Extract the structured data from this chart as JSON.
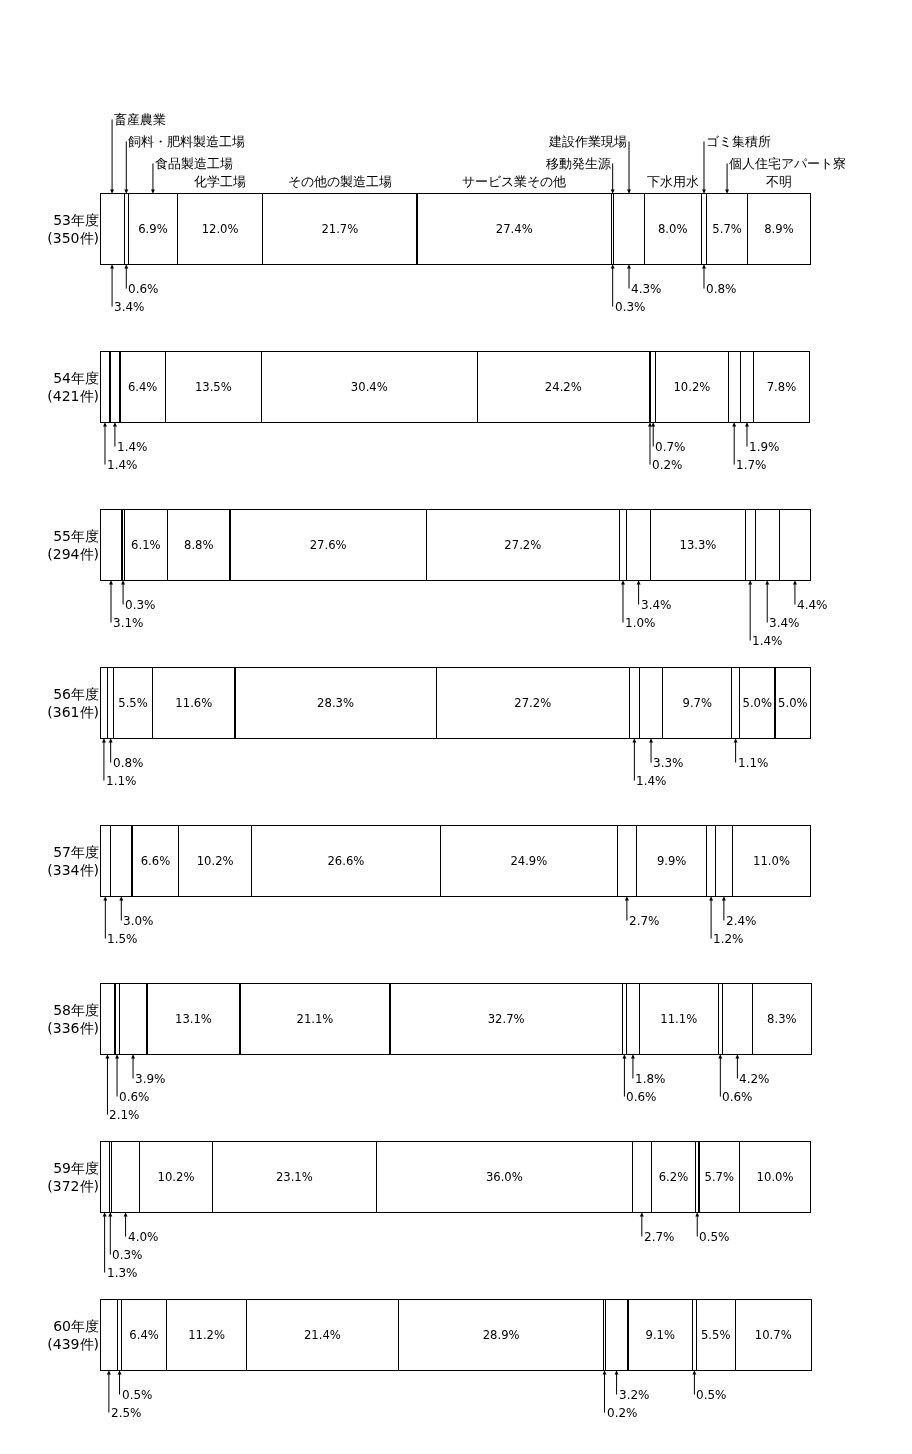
{
  "chart_data": {
    "type": "bar",
    "orientation": "horizontal",
    "stacked": true,
    "categories": [
      "53年度\n(350件)",
      "54年度\n(421件)",
      "55年度\n(294件)",
      "56年度\n(361件)",
      "57年度\n(334件)",
      "58年度\n(336件)",
      "59年度\n(372件)",
      "60年度\n(439件)"
    ],
    "series": [
      {
        "name": "畜産農業",
        "color": "#ffffff",
        "values": [
          3.4,
          1.4,
          3.1,
          1.1,
          1.5,
          2.1,
          1.3,
          2.5
        ],
        "value_labels": [
          "3.4%",
          "1.4%",
          "3.1%",
          "1.1%",
          "1.5%",
          "2.1%",
          "1.3%",
          "2.5%"
        ]
      },
      {
        "name": "飼料・肥料製造工場",
        "color": "#ffffff",
        "values": [
          0.6,
          1.4,
          0.3,
          0.8,
          3.0,
          0.6,
          0.3,
          0.5
        ],
        "value_labels": [
          "0.6%",
          "1.4%",
          "0.3%",
          "0.8%",
          "3.0%",
          "0.6%",
          "0.3%",
          "0.5%"
        ]
      },
      {
        "name": "食品製造工場",
        "color": "#ffffff",
        "values": [
          6.9,
          6.4,
          6.1,
          5.5,
          6.6,
          3.9,
          4.0,
          6.4
        ],
        "value_labels": [
          "6.9%",
          "6.4%",
          "6.1%",
          "5.5%",
          "6.6%",
          "3.9%",
          "4.0%",
          "6.4%"
        ]
      },
      {
        "name": "化学工場",
        "color": "#ffffff",
        "values": [
          12.0,
          13.5,
          8.8,
          11.6,
          10.2,
          13.1,
          10.2,
          11.2
        ],
        "value_labels": [
          "12.0%",
          "13.5%",
          "8.8%",
          "11.6%",
          "10.2%",
          "13.1%",
          "10.2%",
          "11.2%"
        ]
      },
      {
        "name": "その他の製造工場",
        "color": "#ffffff",
        "values": [
          21.7,
          30.4,
          27.6,
          28.3,
          26.6,
          21.1,
          23.1,
          21.4
        ],
        "value_labels": [
          "21.7%",
          "30.4%",
          "27.6%",
          "28.3%",
          "26.6%",
          "21.1%",
          "23.1%",
          "21.4%"
        ]
      },
      {
        "name": "サービス業その他",
        "color": "#ffffff",
        "values": [
          27.4,
          24.2,
          27.2,
          27.2,
          24.9,
          32.7,
          36.0,
          28.9
        ],
        "value_labels": [
          "27.4%",
          "24.2%",
          "27.2%",
          "27.2%",
          "24.9%",
          "32.7%",
          "36.0%",
          "28.9%"
        ]
      },
      {
        "name": "移動発生源",
        "color": "#ffffff",
        "values": [
          0.3,
          0.2,
          1.0,
          1.4,
          2.7,
          0.6,
          null,
          0.2
        ],
        "value_labels": [
          "0.3%",
          "0.2%",
          "1.0%",
          "1.4%",
          "2.7%",
          "0.6%",
          null,
          "0.2%"
        ]
      },
      {
        "name": "建設作業現場",
        "color": "#ffffff",
        "values": [
          4.3,
          0.7,
          3.4,
          3.3,
          null,
          1.8,
          2.7,
          3.2
        ],
        "value_labels": [
          "4.3%",
          "0.7%",
          "3.4%",
          "3.3%",
          null,
          "1.8%",
          "2.7%",
          "3.2%"
        ]
      },
      {
        "name": "下水用水",
        "color": "#ffffff",
        "values": [
          8.0,
          10.2,
          13.3,
          9.7,
          9.9,
          11.1,
          6.2,
          9.1
        ],
        "value_labels": [
          "8.0%",
          "10.2%",
          "13.3%",
          "9.7%",
          "9.9%",
          "11.1%",
          "6.2%",
          "9.1%"
        ]
      },
      {
        "name": "ゴミ集積所",
        "color": "#ffffff",
        "values": [
          0.8,
          1.7,
          1.4,
          1.1,
          1.2,
          0.6,
          0.5,
          0.5
        ],
        "value_labels": [
          "0.8%",
          "1.7%",
          "1.4%",
          "1.1%",
          "1.2%",
          "0.6%",
          "0.5%",
          "0.5%"
        ]
      },
      {
        "name": "個人住宅アパート寮",
        "color": "#ffffff",
        "values": [
          5.7,
          1.9,
          3.4,
          5.0,
          2.4,
          4.2,
          5.7,
          5.5
        ],
        "value_labels": [
          "5.7%",
          "1.9%",
          "3.4%",
          "5.0%",
          "2.4%",
          "4.2%",
          "5.7%",
          "5.5%"
        ]
      },
      {
        "name": "不明",
        "color": "#ffffff",
        "values": [
          8.9,
          7.8,
          4.4,
          5.0,
          11.0,
          8.3,
          10.0,
          10.7
        ],
        "value_labels": [
          "8.9%",
          "7.8%",
          "4.4%",
          "5.0%",
          "11.0%",
          "8.3%",
          "10.0%",
          "10.7%"
        ]
      }
    ],
    "xlim": [
      0,
      100.2
    ],
    "tick_labels": "y"
  }
}
